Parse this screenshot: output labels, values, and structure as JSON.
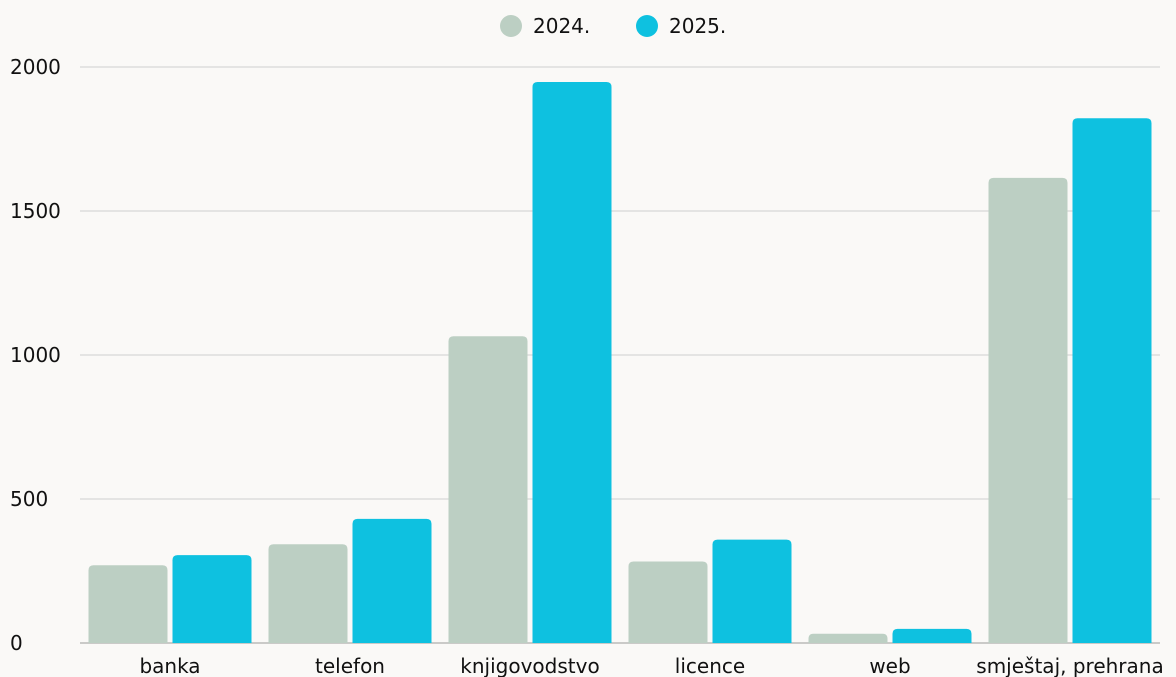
{
  "chart_data": {
    "type": "bar",
    "title": "",
    "xlabel": "",
    "ylabel": "",
    "categories": [
      "banka",
      "telefon",
      "knjigovodstvo",
      "licence",
      "web",
      "smještaj, prehrana"
    ],
    "series": [
      {
        "name": "2024.",
        "color": "#bccfc3",
        "values": [
          270,
          343,
          1065,
          283,
          32,
          1615
        ]
      },
      {
        "name": "2025.",
        "color": "#0ec1e0",
        "values": [
          305,
          431,
          1948,
          359,
          49,
          1822
        ]
      }
    ],
    "ylim": [
      0,
      2000
    ],
    "yticks": [
      0,
      500,
      1000,
      1500,
      2000
    ],
    "grid": true,
    "legend": {
      "position": "top-center"
    }
  }
}
